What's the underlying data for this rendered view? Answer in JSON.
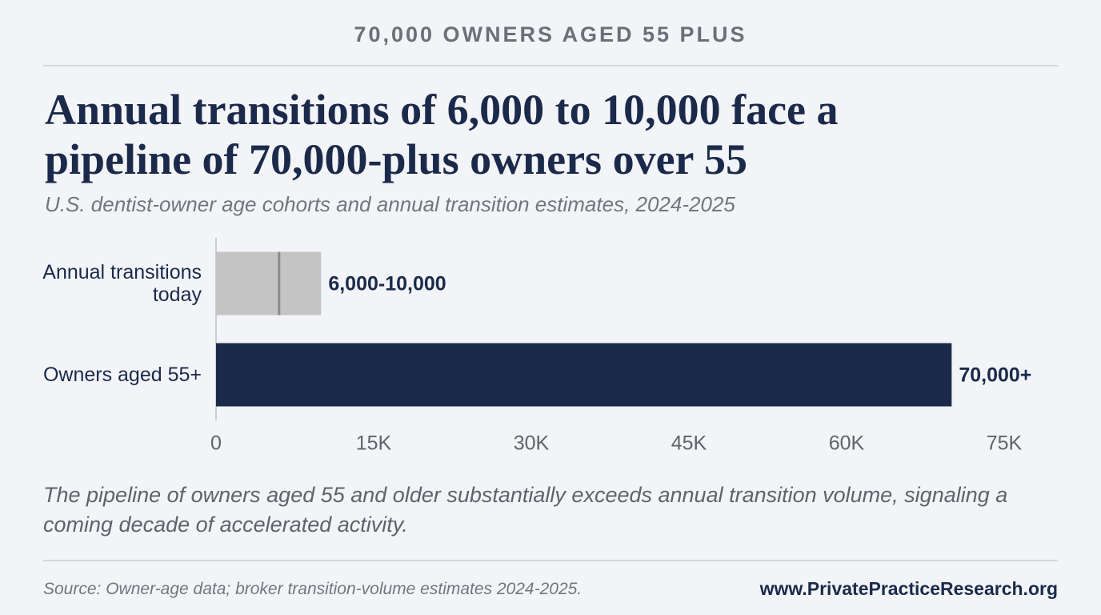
{
  "kicker": "70,000 OWNERS AGED 55 PLUS",
  "chart_data": {
    "type": "bar",
    "orientation": "horizontal",
    "title": "Annual transitions of 6,000 to 10,000 face a pipeline of 70,000-plus owners over 55",
    "subtitle": "U.S. dentist-owner age cohorts and annual transition estimates, 2024-2025",
    "categories": [
      "Annual transitions today",
      "Owners aged 55+"
    ],
    "values": [
      10000,
      70000
    ],
    "low_values": [
      6000,
      null
    ],
    "value_labels": [
      "6,000-10,000",
      "70,000+"
    ],
    "colors": [
      "#c4c4c4",
      "#1b2a4a"
    ],
    "xlim": [
      0,
      75000
    ],
    "xticks": [
      0,
      {
        "value": 15000,
        "label": "15K"
      },
      {
        "value": 30000,
        "label": "30K"
      },
      {
        "value": 45000,
        "label": "45K"
      },
      {
        "value": 60000,
        "label": "60K"
      },
      {
        "value": 75000,
        "label": "75K"
      }
    ],
    "grid": false
  },
  "note": "The pipeline of owners aged 55 and older substantially exceeds annual transition volume, signaling a coming decade of accelerated activity.",
  "footer": {
    "source": "Source: Owner-age data; broker transition-volume estimates 2024-2025.",
    "website": "www.PrivatePracticeResearch.org"
  }
}
